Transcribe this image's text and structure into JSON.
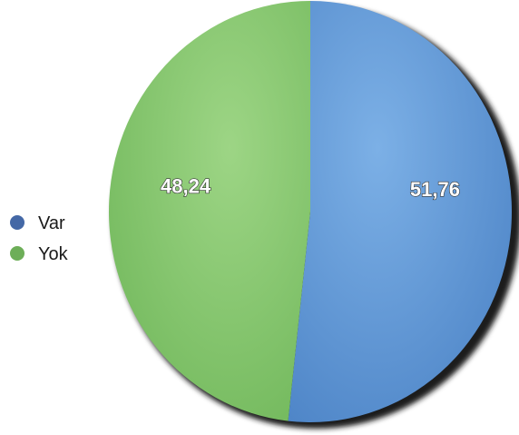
{
  "chart_data": {
    "type": "pie",
    "series": [
      {
        "name": "Var",
        "value": 51.76,
        "label": "51,76",
        "color": "#5f97d4"
      },
      {
        "name": "Yok",
        "value": 48.24,
        "label": "48,24",
        "color": "#82c46c"
      }
    ],
    "legend": {
      "position": "left",
      "items": [
        {
          "name": "Var",
          "color": "#4468a6"
        },
        {
          "name": "Yok",
          "color": "#6dae58"
        }
      ]
    }
  }
}
